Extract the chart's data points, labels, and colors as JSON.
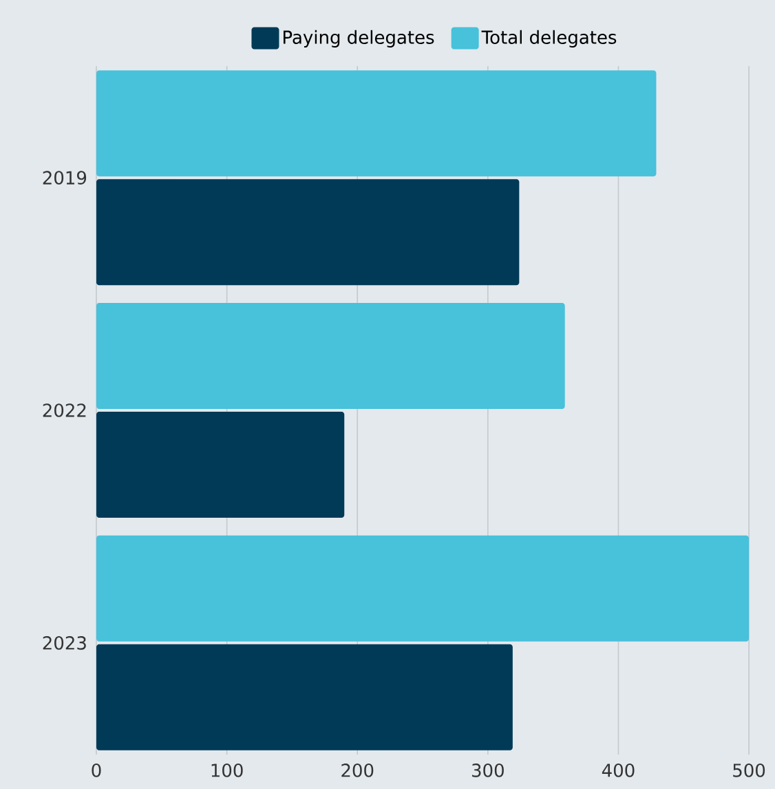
{
  "chart_data": {
    "type": "bar",
    "orientation": "horizontal",
    "categories": [
      "2019",
      "2022",
      "2023"
    ],
    "series": [
      {
        "name": "Paying delegates",
        "color": "#003a57",
        "values": [
          324,
          190,
          319
        ]
      },
      {
        "name": "Total delegates",
        "color": "#48c1db",
        "values": [
          429,
          359,
          500
        ]
      }
    ],
    "xlim": [
      0,
      520
    ],
    "xticks": [
      0,
      100,
      200,
      300,
      400,
      500
    ],
    "grid": "x",
    "legend": "top"
  }
}
